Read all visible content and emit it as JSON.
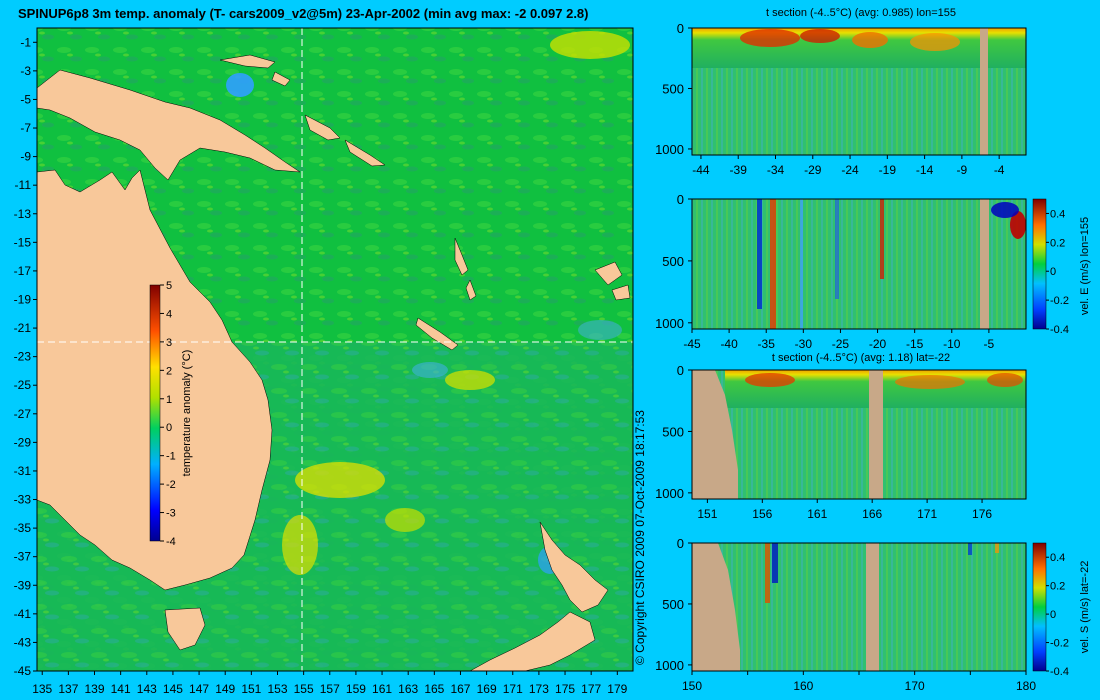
{
  "chart_data": [
    {
      "type": "heatmap",
      "title": "SPINUP6p8 3m temp. anomaly (T- cars2009_v2@5m) 23-Apr-2002 (min avg max: -2 0.097 2.8)",
      "x_ticks": [
        "135",
        "137",
        "139",
        "141",
        "143",
        "145",
        "147",
        "149",
        "151",
        "153",
        "155",
        "157",
        "159",
        "161",
        "163",
        "165",
        "167",
        "169",
        "171",
        "173",
        "175",
        "177",
        "179"
      ],
      "y_ticks": [
        "-1",
        "-3",
        "-5",
        "-7",
        "-9",
        "-11",
        "-13",
        "-15",
        "-17",
        "-19",
        "-21",
        "-23",
        "-25",
        "-27",
        "-29",
        "-31",
        "-33",
        "-35",
        "-37",
        "-39",
        "-41",
        "-43",
        "-45"
      ],
      "xlim": [
        134.6,
        180.2
      ],
      "ylim": [
        -45,
        0
      ],
      "section_lines": {
        "lon": 155,
        "lat": -22
      },
      "colorbar": {
        "label": "temperature anomaly (°C)",
        "ticks": [
          "5",
          "4",
          "3",
          "2",
          "1",
          "0",
          "-1",
          "-2",
          "-3",
          "-4"
        ],
        "range": [
          -4,
          5
        ]
      },
      "copyright": "© Copyright CSIRO 2009   07-Oct-2009 18:17:53",
      "grid": false
    },
    {
      "type": "heatmap",
      "title": "t section (-4..5°C) (avg: 0.985) lon=155",
      "x_ticks": [
        "-44",
        "-39",
        "-34",
        "-29",
        "-24",
        "-19",
        "-14",
        "-9",
        "-4"
      ],
      "y_ticks": [
        "0",
        "500",
        "1000"
      ],
      "xlim": [
        -45.2,
        -0.4
      ],
      "ylim": [
        1050,
        0
      ]
    },
    {
      "type": "heatmap",
      "title": "",
      "x_ticks": [
        "-45",
        "-40",
        "-35",
        "-30",
        "-25",
        "-20",
        "-15",
        "-10",
        "-5"
      ],
      "y_ticks": [
        "0",
        "500",
        "1000"
      ],
      "xlim": [
        -45,
        0
      ],
      "ylim": [
        1050,
        0
      ],
      "colorbar": {
        "label": "vel. E (m/s) lon=155",
        "ticks": [
          "0.4",
          "0.2",
          "0",
          "-0.2",
          "-0.4"
        ],
        "range": [
          -0.4,
          0.5
        ]
      }
    },
    {
      "type": "heatmap",
      "title": "t section (-4..5°C) (avg: 1.18) lat=-22",
      "x_ticks": [
        "151",
        "156",
        "161",
        "166",
        "171",
        "176"
      ],
      "y_ticks": [
        "0",
        "500",
        "1000"
      ],
      "xlim": [
        149.6,
        180
      ],
      "ylim": [
        1050,
        0
      ]
    },
    {
      "type": "heatmap",
      "title": "",
      "x_ticks": [
        "150",
        "160",
        "170",
        "180"
      ],
      "y_ticks": [
        "0",
        "500",
        "1000"
      ],
      "minor_x_ticks": [
        "155",
        "165",
        "175"
      ],
      "xlim": [
        150,
        180
      ],
      "ylim": [
        1050,
        0
      ],
      "colorbar": {
        "label": "vel. S (m/s) lat=-22",
        "ticks": [
          "0.4",
          "0.2",
          "0",
          "-0.2",
          "-0.4"
        ],
        "range": [
          -0.4,
          0.5
        ]
      }
    }
  ]
}
